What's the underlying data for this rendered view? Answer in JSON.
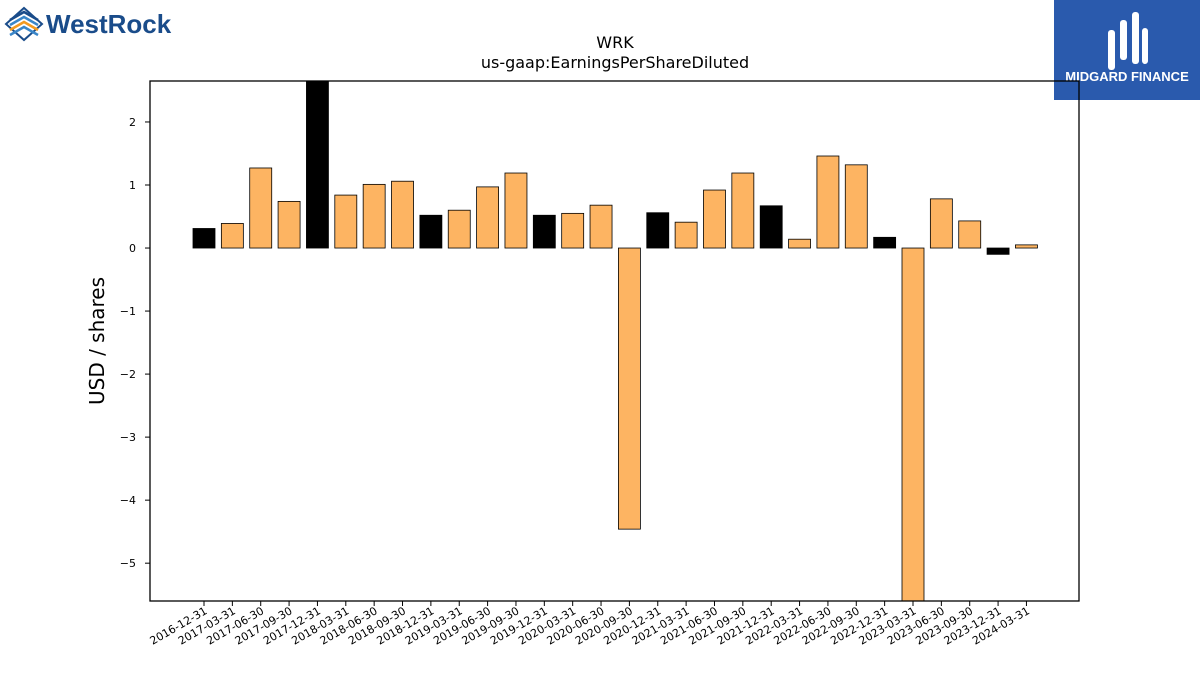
{
  "brand": {
    "left_logo_text": "WestRock",
    "right_logo_text": "MIDGARD FINANCE",
    "right_logo_color": "#2a5aad",
    "left_logo_color": "#1a4c8a"
  },
  "chart_data": {
    "type": "bar",
    "title": "WRK",
    "subtitle": "us-gaap:EarningsPerShareDiluted",
    "xlabel": "",
    "ylabel": "USD / shares",
    "ylim": [
      -5.6,
      2.65
    ],
    "yticks": [
      2,
      1,
      0,
      -1,
      -2,
      -3,
      -4,
      -5
    ],
    "ytick_labels": [
      "2",
      "1",
      "0",
      "−1",
      "−2",
      "−3",
      "−4",
      "−5"
    ],
    "grid": false,
    "colors": {
      "quarterly": "#fdb462",
      "annual": "#000000",
      "edge": "#000000"
    },
    "categories": [
      "2016-12-31",
      "2017-03-31",
      "2017-06-30",
      "2017-09-30",
      "2017-12-31",
      "2018-03-31",
      "2018-06-30",
      "2018-09-30",
      "2018-12-31",
      "2019-03-31",
      "2019-06-30",
      "2019-09-30",
      "2019-12-31",
      "2020-03-31",
      "2020-06-30",
      "2020-09-30",
      "2020-12-31",
      "2021-03-31",
      "2021-06-30",
      "2021-09-30",
      "2021-12-31",
      "2022-03-31",
      "2022-06-30",
      "2022-09-30",
      "2022-12-31",
      "2023-03-31",
      "2023-06-30",
      "2023-09-30",
      "2023-12-31",
      "2024-03-31"
    ],
    "values": [
      0.31,
      0.39,
      1.27,
      0.74,
      2.65,
      0.84,
      1.01,
      1.06,
      0.52,
      0.6,
      0.97,
      1.19,
      0.52,
      0.55,
      0.68,
      -4.46,
      0.56,
      0.41,
      0.92,
      1.19,
      0.67,
      0.14,
      1.46,
      1.32,
      0.17,
      -5.6,
      0.78,
      0.43,
      -0.1,
      0.05
    ],
    "bar_colors": [
      "#000000",
      "#fdb462",
      "#fdb462",
      "#fdb462",
      "#000000",
      "#fdb462",
      "#fdb462",
      "#fdb462",
      "#000000",
      "#fdb462",
      "#fdb462",
      "#fdb462",
      "#000000",
      "#fdb462",
      "#fdb462",
      "#fdb462",
      "#000000",
      "#fdb462",
      "#fdb462",
      "#fdb462",
      "#000000",
      "#fdb462",
      "#fdb462",
      "#fdb462",
      "#000000",
      "#fdb462",
      "#fdb462",
      "#fdb462",
      "#000000",
      "#fdb462"
    ]
  }
}
